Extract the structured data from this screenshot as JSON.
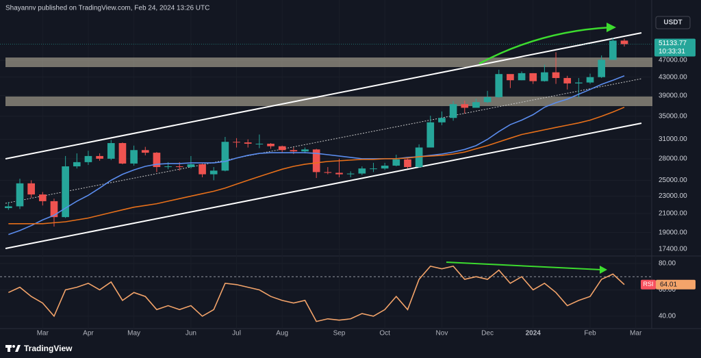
{
  "header": {
    "text": "Shayannv published on TradingView.com, Feb 24, 2024 13:26 UTC"
  },
  "footer": {
    "brand": "TradingView"
  },
  "chart_data": [
    {
      "type": "candlestick",
      "currency": "USDT",
      "countdown": "10:33:31",
      "log_scale": true,
      "grid": true,
      "up_color": "#26a69a",
      "down_color": "#ef5350",
      "categories": [
        null,
        null,
        null,
        "Mar",
        null,
        null,
        null,
        "Apr",
        null,
        null,
        null,
        "May",
        null,
        null,
        null,
        null,
        "Jun",
        null,
        null,
        null,
        "Jul",
        null,
        null,
        null,
        "Aug",
        null,
        null,
        null,
        null,
        "Sep",
        null,
        null,
        null,
        "Oct",
        null,
        null,
        null,
        null,
        "Nov",
        null,
        null,
        null,
        "Dec",
        null,
        null,
        null,
        "2024",
        null,
        null,
        null,
        null,
        "Feb",
        null,
        null,
        null,
        "Mar"
      ],
      "open": [
        21600,
        21800,
        24600,
        23200,
        22400,
        20600,
        26900,
        27500,
        28400,
        28000,
        30400,
        27300,
        29300,
        28900,
        26800,
        26900,
        26800,
        27200,
        25800,
        26300,
        30600,
        30500,
        30300,
        30300,
        29900,
        29300,
        29100,
        29400,
        26100,
        26000,
        25800,
        25900,
        26600,
        26600,
        27000,
        27900,
        26800,
        29700,
        33900,
        34700,
        37300,
        36600,
        37700,
        38700,
        43700,
        42300,
        43900,
        42100,
        44100,
        42800,
        41600,
        41800,
        43000,
        47100,
        52100,
        null
      ],
      "high": [
        22300,
        25200,
        25000,
        23500,
        22700,
        28400,
        28800,
        29200,
        28800,
        30900,
        30500,
        30000,
        29800,
        29000,
        27500,
        27500,
        28400,
        27300,
        26800,
        31400,
        31200,
        31000,
        31800,
        30400,
        30000,
        29700,
        29700,
        29500,
        26800,
        28000,
        26200,
        26900,
        27400,
        27400,
        28600,
        28000,
        30200,
        35100,
        35900,
        37900,
        38000,
        38400,
        40000,
        44700,
        43400,
        44300,
        43900,
        45900,
        49000,
        43300,
        42800,
        43800,
        48200,
        52800,
        52600,
        null
      ],
      "low": [
        21400,
        21500,
        22800,
        21900,
        19600,
        20500,
        26600,
        27100,
        27700,
        27800,
        27200,
        27000,
        28500,
        26100,
        26500,
        26300,
        26600,
        25400,
        25000,
        26200,
        29700,
        29700,
        29600,
        29500,
        28900,
        28700,
        28800,
        25300,
        25800,
        25400,
        25400,
        25700,
        26100,
        26400,
        26900,
        26600,
        26700,
        29700,
        33400,
        34200,
        35500,
        36800,
        37500,
        38600,
        40600,
        42300,
        41500,
        42000,
        41500,
        40300,
        38600,
        41500,
        42800,
        47100,
        50500,
        null
      ],
      "close": [
        21800,
        24600,
        23200,
        22400,
        20600,
        26900,
        27500,
        28400,
        28000,
        30400,
        27300,
        29300,
        28900,
        26800,
        26900,
        26800,
        27200,
        25800,
        26300,
        30600,
        30500,
        30300,
        30300,
        29900,
        29300,
        29100,
        29400,
        26100,
        26000,
        25800,
        25900,
        26600,
        26600,
        27000,
        27900,
        26800,
        29700,
        33900,
        34700,
        37300,
        36600,
        37700,
        38700,
        43700,
        42300,
        43900,
        42100,
        44100,
        42800,
        41600,
        41800,
        43000,
        47100,
        52100,
        51133.77,
        null
      ],
      "series": [
        {
          "color": "#5b8def",
          "values": [
            18800,
            19200,
            19700,
            20300,
            20800,
            21600,
            22400,
            23100,
            24000,
            25000,
            25800,
            26400,
            26900,
            27200,
            27300,
            27300,
            27400,
            27400,
            27400,
            27600,
            28100,
            28500,
            28800,
            28900,
            28900,
            28900,
            28900,
            28800,
            28600,
            28400,
            28200,
            28000,
            28000,
            28000,
            28000,
            28200,
            28300,
            28500,
            28700,
            29000,
            29400,
            30000,
            31000,
            32300,
            33500,
            34300,
            35300,
            36700,
            37600,
            38300,
            39300,
            40300,
            41400,
            42300,
            43300,
            null
          ]
        },
        {
          "color": "#e8701a",
          "values": [
            19900,
            19900,
            19900,
            19900,
            20000,
            20100,
            20300,
            20500,
            20800,
            21100,
            21400,
            21700,
            21900,
            22100,
            22400,
            22700,
            23000,
            23300,
            23600,
            24000,
            24500,
            25000,
            25500,
            26000,
            26500,
            26900,
            27200,
            27400,
            27600,
            27700,
            27800,
            27900,
            27900,
            28000,
            28000,
            28100,
            28300,
            28400,
            28500,
            28700,
            29000,
            29500,
            30000,
            30600,
            31200,
            31800,
            32200,
            32600,
            33000,
            33400,
            33800,
            34300,
            35000,
            35800,
            36700,
            null
          ]
        }
      ],
      "ylim": [
        16850,
        64500
      ],
      "yticks": [
        {
          "value": 47000,
          "label": "47000.00"
        },
        {
          "value": 43000,
          "label": "43000.00"
        },
        {
          "value": 39000,
          "label": "39000.00"
        },
        {
          "value": 35000,
          "label": "35000.00"
        },
        {
          "value": 31000,
          "label": "31000.00"
        },
        {
          "value": 28000,
          "label": "28000.00"
        },
        {
          "value": 25000,
          "label": "25000.00"
        },
        {
          "value": 23000,
          "label": "23000.00"
        },
        {
          "value": 21000,
          "label": "21000.00"
        },
        {
          "value": 19000,
          "label": "19000.00"
        },
        {
          "value": 17400,
          "label": "17400.00"
        }
      ]
    },
    {
      "type": "line",
      "ref_line": 70,
      "series": [
        {
          "name": "RSI",
          "color": "#f4a46a",
          "values": [
            58,
            62,
            55,
            50,
            40,
            60,
            62,
            65,
            60,
            66,
            52,
            58,
            55,
            45,
            48,
            45,
            48,
            40,
            45,
            65,
            64,
            62,
            60,
            55,
            52,
            50,
            52,
            36,
            38,
            37,
            38,
            42,
            40,
            45,
            55,
            45,
            68,
            78,
            76,
            78,
            68,
            70,
            68,
            75,
            65,
            70,
            60,
            65,
            58,
            48,
            52,
            55,
            68,
            72,
            64.01,
            null
          ]
        }
      ],
      "ylim": [
        30.6,
        85.2
      ],
      "yticks": [
        {
          "value": 80,
          "label": "80.00"
        },
        {
          "value": 60,
          "label": "60.00"
        },
        {
          "value": 40,
          "label": "40.00"
        }
      ]
    }
  ]
}
